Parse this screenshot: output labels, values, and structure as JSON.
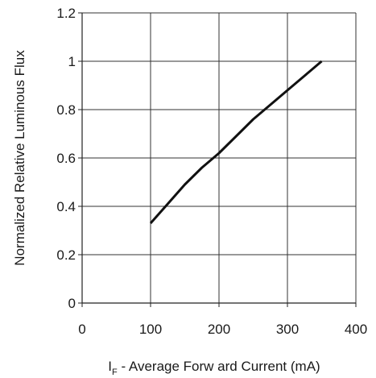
{
  "chart_data": {
    "type": "line",
    "title": "",
    "xlabel_main": "I",
    "xlabel_sub": "F",
    "xlabel_rest": " - Average Forw ard Current (mA)",
    "ylabel": "Normalized Relative Luminous Flux",
    "xlim": [
      0,
      400
    ],
    "ylim": [
      0,
      1.2
    ],
    "xticks": [
      0,
      100,
      200,
      300,
      400
    ],
    "yticks": [
      0,
      0.2,
      0.4,
      0.6,
      0.8,
      1,
      1.2
    ],
    "xtick_labels": [
      "0",
      "100",
      "200",
      "300",
      "400"
    ],
    "ytick_labels": [
      "0",
      "0.2",
      "0.4",
      "0.6",
      "0.8",
      "1",
      "1.2"
    ],
    "grid": true,
    "series": [
      {
        "x": [
          100,
          125,
          150,
          175,
          200,
          225,
          250,
          275,
          300,
          325,
          350
        ],
        "y": [
          0.33,
          0.41,
          0.49,
          0.56,
          0.62,
          0.69,
          0.76,
          0.82,
          0.88,
          0.94,
          1.0
        ],
        "color": "#111111"
      }
    ]
  }
}
